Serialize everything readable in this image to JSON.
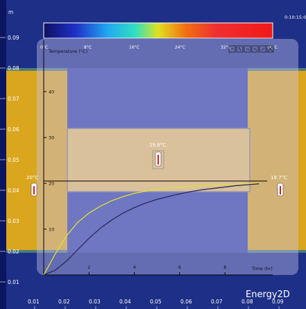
{
  "app": {
    "brand": "Energy2D",
    "clock": "0:10:15:00"
  },
  "ruler": {
    "unit": "m",
    "y_labels": [
      "0.09",
      "0.08",
      "0.07",
      "0.06",
      "0.05",
      "0.04",
      "0.03",
      "0.02",
      "0.01"
    ],
    "x_labels": [
      "0.01",
      "0.02",
      "0.03",
      "0.04",
      "0.05",
      "0.06",
      "0.07",
      "0.08",
      "0.09"
    ]
  },
  "color_legend": {
    "labels": [
      "0°C",
      "8°C",
      "16°C",
      "24°C",
      "32°C",
      "40°C"
    ]
  },
  "thermometers": {
    "left": "20°C",
    "center": "19.8°C",
    "right": "19.7°C"
  },
  "graph": {
    "ylabel": "Temperature (°C)",
    "xlabel": "Time (hr)",
    "toolbar_buttons": [
      "graph-tool-1",
      "graph-tool-2",
      "graph-tool-3",
      "graph-tool-4",
      "graph-tool-5",
      "graph-close"
    ]
  },
  "chart_data": {
    "type": "line",
    "xlabel": "Time (hr)",
    "ylabel": "Temperature (°C)",
    "xlim": [
      0,
      9.8
    ],
    "ylim": [
      0,
      50
    ],
    "x_ticks": [
      2,
      4,
      6,
      8
    ],
    "y_ticks": [
      10,
      20,
      30,
      40
    ],
    "reference_line": 20.5,
    "series": [
      {
        "color": "#e0e030",
        "x": [
          0,
          0.5,
          1,
          1.5,
          2,
          2.5,
          3,
          3.5,
          4,
          4.5,
          5,
          5.5,
          6,
          6.5,
          7,
          7.5,
          8,
          8.5,
          9,
          9.5
        ],
        "y": [
          0,
          4.5,
          8.5,
          11.5,
          13.5,
          15,
          16.2,
          17.1,
          17.8,
          18.3,
          18.7,
          19,
          19.2,
          19.4,
          19.5,
          19.6,
          19.7,
          19.8,
          19.9,
          20
        ]
      },
      {
        "color": "#2a2a5a",
        "x": [
          0,
          0.5,
          1,
          1.5,
          2,
          2.5,
          3,
          3.5,
          4,
          4.5,
          5,
          5.5,
          6,
          6.5,
          7,
          7.5,
          8,
          8.5,
          9,
          9.5
        ],
        "y": [
          0,
          1,
          3,
          5.5,
          8,
          10.2,
          12,
          13.5,
          14.7,
          15.7,
          16.5,
          17.1,
          17.7,
          18.2,
          18.6,
          18.9,
          19.2,
          19.5,
          19.7,
          19.9
        ]
      }
    ]
  }
}
